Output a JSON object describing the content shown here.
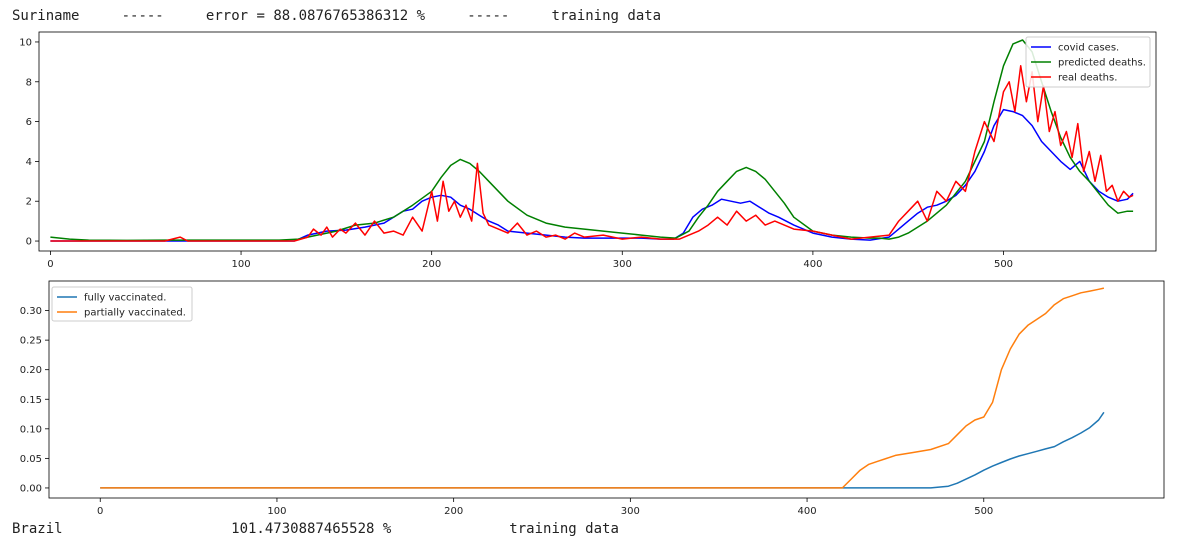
{
  "header": {
    "country": "Suriname",
    "sep1": "-----",
    "error_text": "error = 88.0876765386312 %",
    "sep2": "-----",
    "mode": "training data"
  },
  "footer_partial": "Brazil                    101.4730887465528 %              training data",
  "chart_data": [
    {
      "type": "line",
      "title": "",
      "xlabel": "",
      "ylabel": "",
      "xlim": [
        -6,
        580
      ],
      "ylim": [
        -0.5,
        10.5
      ],
      "xticks": [
        0,
        100,
        200,
        300,
        400,
        500
      ],
      "yticks": [
        0,
        2,
        4,
        6,
        8,
        10
      ],
      "legend_position": "top-right",
      "grid": false,
      "series": [
        {
          "name": "covid cases.",
          "color": "#0000ff",
          "x": [
            0,
            60,
            128,
            135,
            145,
            155,
            165,
            170,
            175,
            180,
            185,
            190,
            195,
            200,
            205,
            210,
            215,
            220,
            225,
            230,
            235,
            240,
            250,
            260,
            270,
            280,
            290,
            300,
            310,
            320,
            327,
            332,
            337,
            342,
            347,
            352,
            357,
            362,
            367,
            372,
            377,
            382,
            390,
            400,
            410,
            420,
            430,
            440,
            445,
            450,
            455,
            460,
            465,
            470,
            475,
            480,
            485,
            490,
            495,
            500,
            505,
            510,
            515,
            520,
            525,
            530,
            535,
            540,
            545,
            550,
            555,
            560,
            565,
            568
          ],
          "y": [
            0,
            0,
            0,
            0.3,
            0.5,
            0.55,
            0.7,
            0.8,
            0.9,
            1.2,
            1.5,
            1.6,
            2.0,
            2.2,
            2.3,
            2.2,
            1.8,
            1.6,
            1.3,
            1.0,
            0.8,
            0.5,
            0.4,
            0.3,
            0.2,
            0.15,
            0.15,
            0.15,
            0.15,
            0.1,
            0.1,
            0.4,
            1.2,
            1.6,
            1.8,
            2.1,
            2.0,
            1.9,
            2.0,
            1.7,
            1.4,
            1.2,
            0.8,
            0.4,
            0.2,
            0.1,
            0.05,
            0.2,
            0.6,
            1.0,
            1.4,
            1.7,
            1.8,
            2.0,
            2.3,
            2.8,
            3.5,
            4.5,
            5.8,
            6.6,
            6.5,
            6.3,
            5.8,
            5.0,
            4.5,
            4.0,
            3.6,
            4.0,
            3.0,
            2.5,
            2.2,
            2.0,
            2.1,
            2.4
          ]
        },
        {
          "name": "predicted deaths.",
          "color": "#008000",
          "x": [
            0,
            10,
            20,
            40,
            60,
            80,
            100,
            120,
            130,
            140,
            150,
            160,
            170,
            180,
            190,
            200,
            205,
            210,
            215,
            220,
            225,
            230,
            240,
            250,
            260,
            270,
            280,
            290,
            300,
            310,
            320,
            328,
            335,
            340,
            345,
            350,
            355,
            360,
            365,
            370,
            375,
            380,
            385,
            390,
            400,
            410,
            420,
            430,
            435,
            440,
            445,
            450,
            460,
            470,
            480,
            490,
            495,
            500,
            505,
            510,
            515,
            520,
            525,
            530,
            535,
            540,
            545,
            550,
            555,
            560,
            565,
            568
          ],
          "y": [
            0.2,
            0.1,
            0.05,
            0.03,
            0.05,
            0.05,
            0.05,
            0.05,
            0.1,
            0.3,
            0.5,
            0.8,
            0.9,
            1.2,
            1.8,
            2.5,
            3.2,
            3.8,
            4.1,
            3.9,
            3.5,
            3.0,
            2.0,
            1.3,
            0.9,
            0.7,
            0.6,
            0.5,
            0.4,
            0.3,
            0.2,
            0.15,
            0.5,
            1.2,
            1.8,
            2.5,
            3.0,
            3.5,
            3.7,
            3.5,
            3.1,
            2.5,
            1.9,
            1.2,
            0.5,
            0.3,
            0.2,
            0.15,
            0.15,
            0.1,
            0.2,
            0.4,
            1.0,
            1.8,
            3.0,
            5.0,
            7.0,
            8.8,
            9.9,
            10.1,
            9.5,
            8.0,
            6.5,
            5.2,
            4.2,
            3.5,
            3.0,
            2.4,
            1.8,
            1.4,
            1.5,
            1.5
          ]
        },
        {
          "name": "real deaths.",
          "color": "#ff0000",
          "x": [
            0,
            60,
            68,
            72,
            80,
            128,
            135,
            138,
            142,
            145,
            148,
            152,
            155,
            160,
            165,
            170,
            175,
            180,
            185,
            190,
            195,
            200,
            203,
            206,
            209,
            212,
            215,
            218,
            221,
            224,
            227,
            230,
            235,
            240,
            245,
            250,
            255,
            260,
            265,
            270,
            275,
            280,
            290,
            300,
            310,
            320,
            330,
            335,
            340,
            345,
            350,
            355,
            360,
            365,
            370,
            375,
            380,
            390,
            400,
            410,
            420,
            430,
            440,
            445,
            450,
            455,
            460,
            465,
            470,
            475,
            480,
            485,
            490,
            495,
            500,
            503,
            506,
            509,
            512,
            515,
            518,
            521,
            524,
            527,
            530,
            533,
            536,
            539,
            542,
            545,
            548,
            551,
            554,
            557,
            560,
            563,
            566,
            568
          ],
          "y": [
            0,
            0,
            0.2,
            0,
            0,
            0,
            0.2,
            0.6,
            0.3,
            0.7,
            0.2,
            0.6,
            0.4,
            0.9,
            0.3,
            1.0,
            0.4,
            0.5,
            0.3,
            1.2,
            0.5,
            2.5,
            1.0,
            3.0,
            1.5,
            2.0,
            1.2,
            1.8,
            1.0,
            3.9,
            1.4,
            0.8,
            0.6,
            0.4,
            0.9,
            0.3,
            0.5,
            0.2,
            0.3,
            0.1,
            0.4,
            0.2,
            0.3,
            0.1,
            0.2,
            0.1,
            0.1,
            0.3,
            0.5,
            0.8,
            1.2,
            0.8,
            1.5,
            1.0,
            1.3,
            0.8,
            1.0,
            0.6,
            0.5,
            0.3,
            0.1,
            0.2,
            0.3,
            1.0,
            1.5,
            2.0,
            1.0,
            2.5,
            2.0,
            3.0,
            2.5,
            4.5,
            6.0,
            5.0,
            7.5,
            8.0,
            6.5,
            8.8,
            7.0,
            8.5,
            6.0,
            7.8,
            5.5,
            6.5,
            4.8,
            5.5,
            4.2,
            5.9,
            3.5,
            4.5,
            3.0,
            4.3,
            2.5,
            2.8,
            2.0,
            2.5,
            2.2,
            2.3
          ]
        }
      ]
    },
    {
      "type": "line",
      "title": "",
      "xlabel": "",
      "ylabel": "",
      "xlim": [
        -29,
        602
      ],
      "ylim": [
        -0.017,
        0.35
      ],
      "xticks": [
        0,
        100,
        200,
        300,
        400,
        500
      ],
      "yticks": [
        0.0,
        0.05,
        0.1,
        0.15,
        0.2,
        0.25,
        0.3
      ],
      "ytick_labels": [
        "0.00",
        "0.05",
        "0.10",
        "0.15",
        "0.20",
        "0.25",
        "0.30"
      ],
      "legend_position": "top-left",
      "grid": false,
      "series": [
        {
          "name": "fully vaccinated.",
          "color": "#1f77b4",
          "x": [
            0,
            100,
            200,
            300,
            400,
            470,
            480,
            485,
            490,
            495,
            500,
            505,
            510,
            515,
            520,
            525,
            530,
            535,
            540,
            545,
            550,
            555,
            560,
            565,
            568
          ],
          "y": [
            0,
            0,
            0,
            0,
            0,
            0,
            0.003,
            0.008,
            0.015,
            0.022,
            0.03,
            0.037,
            0.043,
            0.049,
            0.054,
            0.058,
            0.062,
            0.066,
            0.07,
            0.078,
            0.085,
            0.093,
            0.102,
            0.115,
            0.128
          ]
        },
        {
          "name": "partially vaccinated.",
          "color": "#ff7f0e",
          "x": [
            0,
            100,
            200,
            300,
            400,
            420,
            425,
            430,
            435,
            440,
            445,
            450,
            460,
            470,
            480,
            485,
            490,
            495,
            500,
            505,
            510,
            515,
            520,
            525,
            530,
            535,
            540,
            545,
            550,
            555,
            560,
            565,
            568
          ],
          "y": [
            0,
            0,
            0,
            0,
            0,
            0,
            0.015,
            0.03,
            0.04,
            0.045,
            0.05,
            0.055,
            0.06,
            0.065,
            0.075,
            0.09,
            0.105,
            0.115,
            0.12,
            0.145,
            0.2,
            0.235,
            0.26,
            0.275,
            0.285,
            0.295,
            0.31,
            0.32,
            0.325,
            0.33,
            0.333,
            0.336,
            0.338
          ]
        }
      ]
    }
  ]
}
